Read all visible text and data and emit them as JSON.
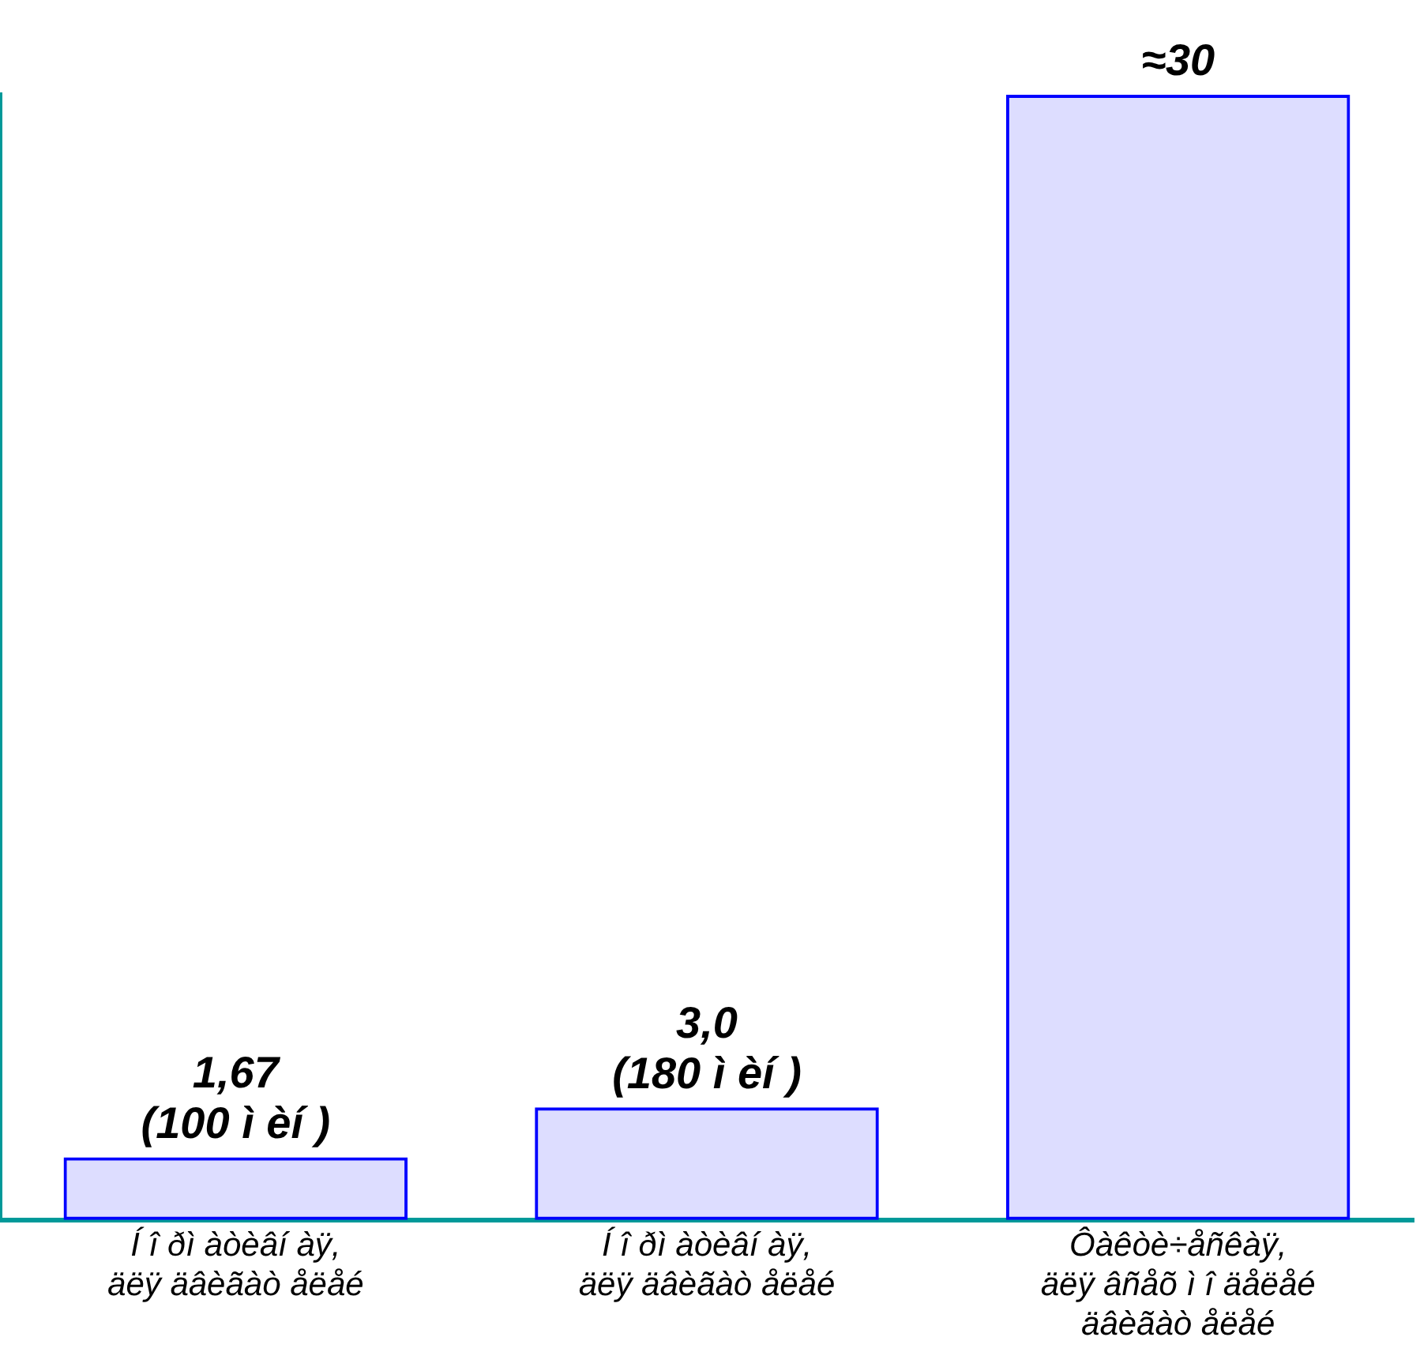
{
  "chart_data": {
    "type": "bar",
    "categories": [
      "Í î ðì àòèâí àÿ,\näëÿ äâèãàò åëåé",
      "Í î ðì àòèâí àÿ,\näëÿ äâèãàò åëåé",
      "Ôàêòè÷åñêàÿ,\näëÿ âñåõ ì î äåëåé\näâèãàò åëåé"
    ],
    "values": [
      1.67,
      3.0,
      30
    ],
    "colors": [
      "#0000ff",
      "#0000ff",
      "#0000ff"
    ],
    "value_labels": [
      "1,67\n(100 ì èí )",
      "3,0\n(180 ì èí )",
      "≈30"
    ],
    "grid": false,
    "legend": false
  }
}
